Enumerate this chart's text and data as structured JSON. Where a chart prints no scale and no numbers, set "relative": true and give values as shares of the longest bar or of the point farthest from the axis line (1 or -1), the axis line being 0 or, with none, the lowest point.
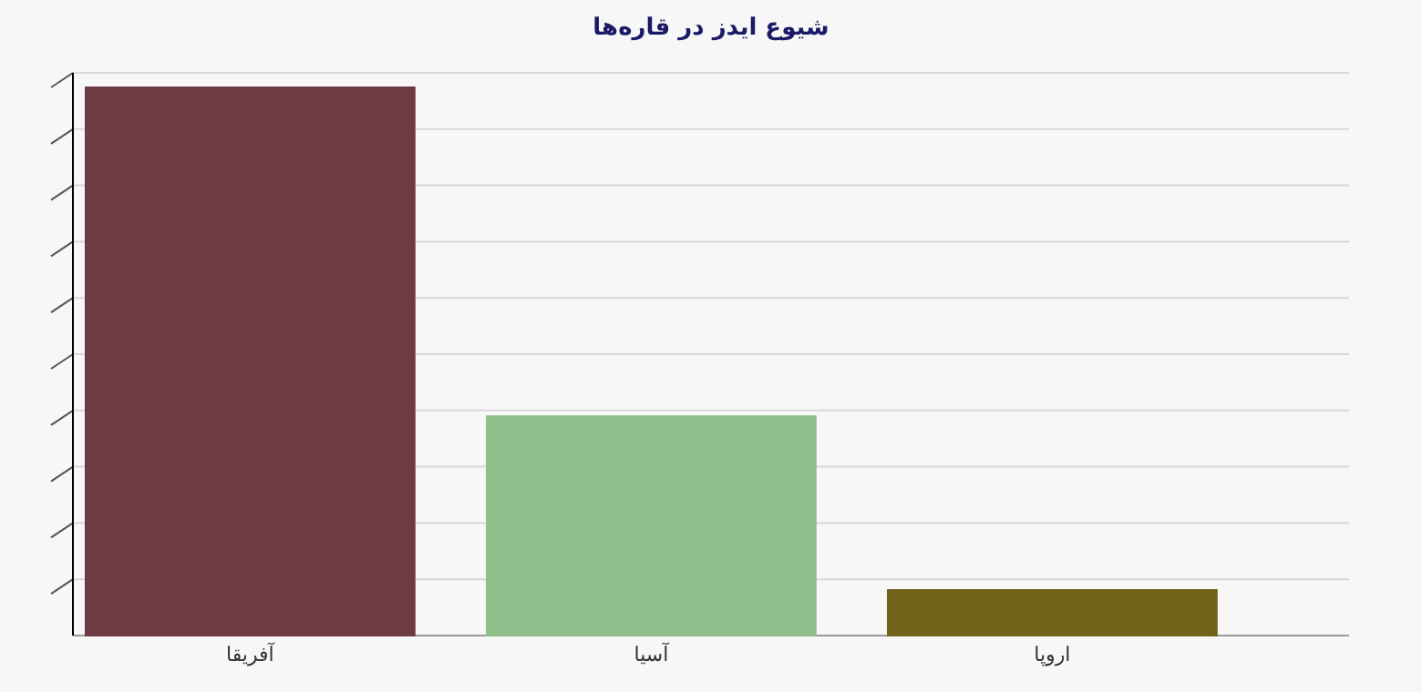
{
  "chart_data": {
    "type": "bar",
    "title": "شیوع ایدز در قاره‌ها",
    "relative": true,
    "grid": "y",
    "categories": [
      "آفریقا",
      "آسیا",
      "اروپا"
    ],
    "values": [
      1,
      0.4,
      0.083
    ],
    "colors": [
      "#6e3a44",
      "#8fbf8a",
      "#6f6419"
    ]
  }
}
